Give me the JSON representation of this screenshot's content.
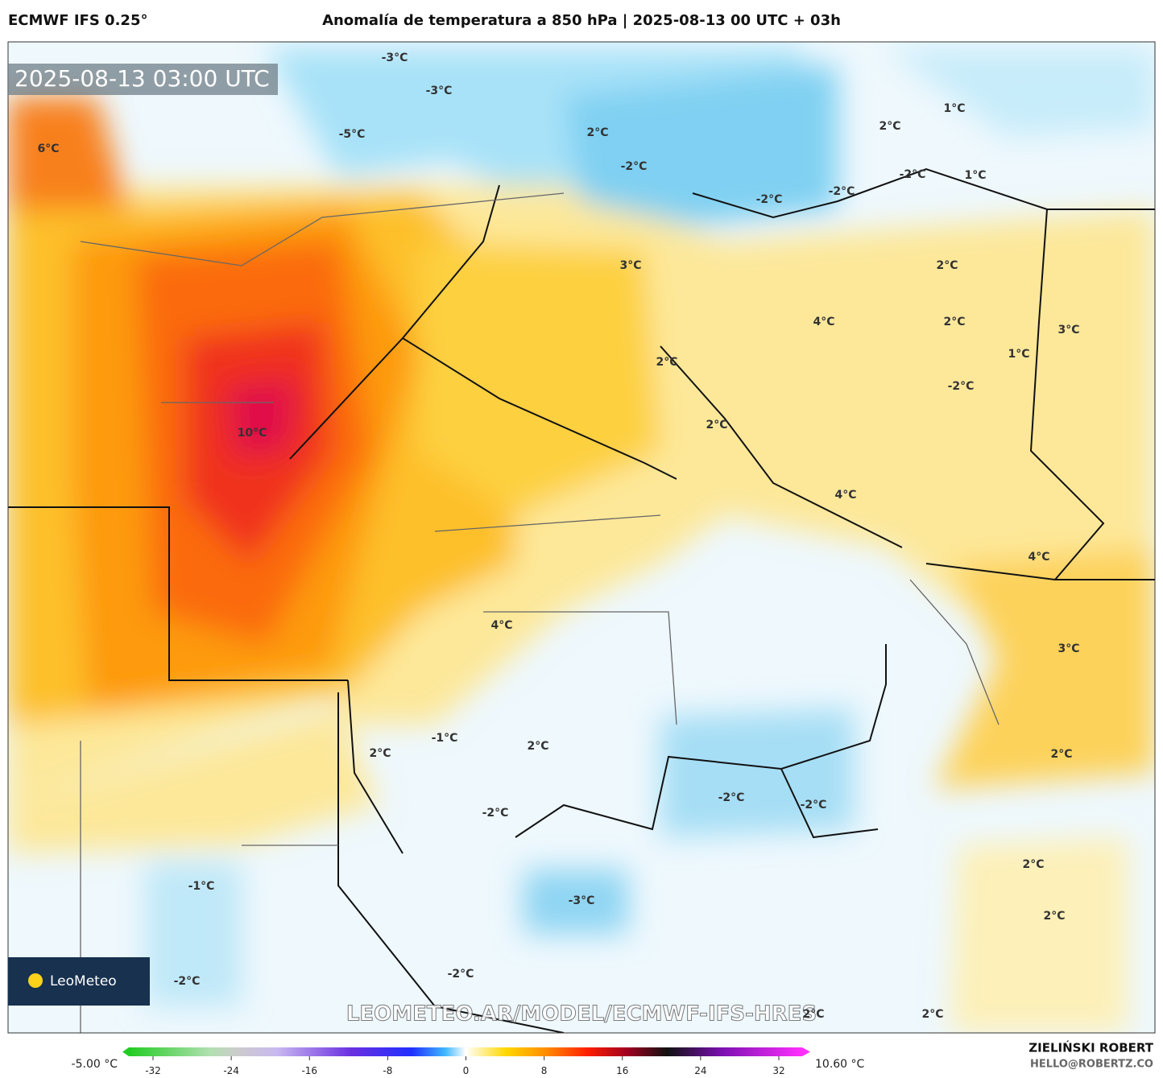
{
  "header": {
    "model": "ECMWF IFS 0.25°",
    "title": "Anomalía de temperatura a 850 hPa | 2025-08-13 00 UTC + 03h"
  },
  "map": {
    "timestamp": "2025-08-13 03:00 UTC",
    "labels": [
      "-3°C",
      "-3°C",
      "-5°C",
      "2°C",
      "-2°C",
      "-2°C",
      "-2°C",
      "-2°C",
      "2°C",
      "1°C",
      "1°C",
      "6°C",
      "3°C",
      "2°C",
      "4°C",
      "2°C",
      "3°C",
      "1°C",
      "2°C",
      "-2°C",
      "2°C",
      "10°C",
      "4°C",
      "4°C",
      "4°C",
      "3°C",
      "-1°C",
      "2°C",
      "2°C",
      "2°C",
      "-2°C",
      "-2°C",
      "-2°C",
      "2°C",
      "-1°C",
      "-3°C",
      "2°C",
      "-2°C",
      "-2°C",
      "2°C",
      "2°C"
    ],
    "logo": "LeoMeteo",
    "watermark": "LEOMETEO.AR/MODEL/ECMWF-IFS-HRES"
  },
  "colorbar": {
    "min_label": "-5.00 °C",
    "max_label": "10.60 °C",
    "ticks": [
      -32,
      -24,
      -16,
      -8,
      0,
      8,
      16,
      24,
      32
    ]
  },
  "credits": {
    "author": "ZIELIŃSKI ROBERT",
    "email": "HELLO@ROBERTZ.CO"
  }
}
